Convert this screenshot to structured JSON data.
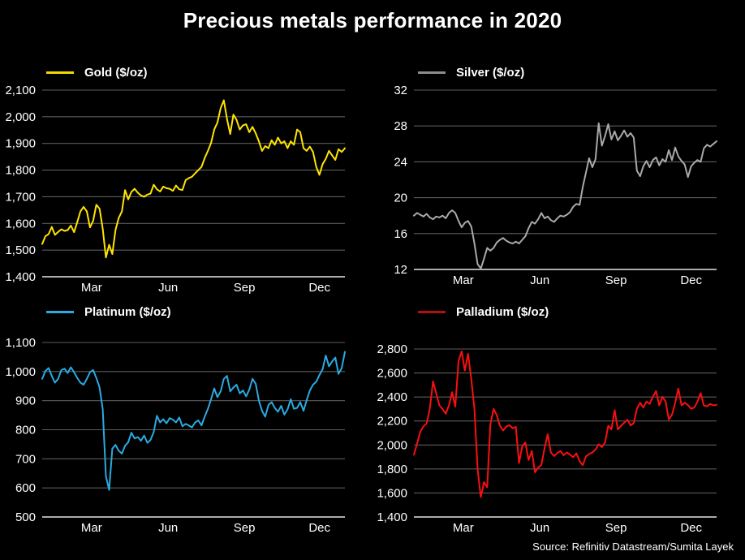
{
  "page": {
    "title": "Precious metals performance in 2020",
    "source": "Source: Refinitiv Datastream/Sumita Layek",
    "background": "#000000"
  },
  "colors": {
    "grid": "#5c5c5c",
    "axis": "#e6e6e6",
    "text": "#ffffff"
  },
  "chart_data": [
    {
      "type": "line",
      "metal": "Gold",
      "legend_label": "Gold ($/oz)",
      "line_color": "#ffe400",
      "swatch_color": "#f0d800",
      "ylim": [
        1400,
        2100
      ],
      "ytick_values": [
        2100,
        2000,
        1900,
        1800,
        1700,
        1600,
        1500,
        1400
      ],
      "ytick_labels": [
        "2,100",
        "2,000",
        "1,900",
        "1,800",
        "1,700",
        "1,600",
        "1,500",
        "1,400"
      ],
      "x_axis": {
        "labels": [
          "Mar",
          "Jun",
          "Sep",
          "Dec"
        ],
        "fractions": [
          0.163,
          0.416,
          0.668,
          0.916
        ]
      },
      "values": [
        1523,
        1552,
        1560,
        1587,
        1557,
        1568,
        1578,
        1572,
        1575,
        1592,
        1567,
        1605,
        1645,
        1662,
        1645,
        1585,
        1610,
        1670,
        1655,
        1580,
        1472,
        1520,
        1485,
        1575,
        1620,
        1645,
        1725,
        1690,
        1718,
        1730,
        1715,
        1705,
        1700,
        1708,
        1712,
        1745,
        1728,
        1720,
        1738,
        1732,
        1730,
        1722,
        1742,
        1728,
        1725,
        1762,
        1770,
        1775,
        1788,
        1800,
        1812,
        1845,
        1872,
        1902,
        1952,
        1978,
        2032,
        2062,
        1992,
        1935,
        2008,
        1988,
        1952,
        1968,
        1972,
        1942,
        1962,
        1938,
        1908,
        1872,
        1890,
        1882,
        1912,
        1895,
        1922,
        1900,
        1908,
        1882,
        1908,
        1895,
        1952,
        1942,
        1882,
        1872,
        1888,
        1868,
        1812,
        1782,
        1822,
        1842,
        1872,
        1855,
        1838,
        1878,
        1868,
        1882
      ]
    },
    {
      "type": "line",
      "metal": "Silver",
      "legend_label": "Silver ($/oz)",
      "line_color": "#a9a9a9",
      "swatch_color": "#8c8c8c",
      "ylim": [
        12,
        32
      ],
      "ytick_values": [
        32,
        28,
        24,
        20,
        16,
        12
      ],
      "ytick_labels": [
        "32",
        "28",
        "24",
        "20",
        "16",
        "12"
      ],
      "x_axis": {
        "labels": [
          "Mar",
          "Jun",
          "Sep",
          "Dec"
        ],
        "fractions": [
          0.163,
          0.416,
          0.668,
          0.916
        ]
      },
      "values": [
        18.0,
        18.3,
        18.1,
        17.9,
        18.2,
        17.8,
        17.6,
        17.9,
        17.8,
        18.0,
        17.7,
        18.3,
        18.6,
        18.3,
        17.4,
        16.7,
        17.2,
        17.4,
        16.8,
        14.9,
        12.6,
        12.1,
        13.2,
        14.4,
        14.1,
        14.4,
        15.0,
        15.3,
        15.5,
        15.2,
        15.0,
        14.9,
        15.1,
        14.9,
        15.3,
        15.7,
        16.6,
        17.3,
        17.1,
        17.6,
        18.3,
        17.7,
        17.9,
        17.5,
        17.3,
        17.7,
        18.0,
        17.9,
        18.1,
        18.4,
        19.0,
        19.3,
        19.2,
        21.2,
        22.8,
        24.4,
        23.4,
        24.3,
        28.3,
        25.8,
        26.9,
        28.2,
        26.5,
        27.4,
        26.4,
        26.9,
        27.5,
        26.8,
        27.2,
        26.7,
        23.0,
        22.4,
        23.5,
        24.1,
        23.4,
        24.2,
        24.5,
        23.6,
        24.3,
        24.0,
        25.3,
        24.2,
        25.6,
        24.6,
        24.1,
        23.7,
        22.3,
        23.5,
        23.9,
        24.2,
        24.0,
        25.5,
        25.9,
        25.7,
        26.0,
        26.3
      ]
    },
    {
      "type": "line",
      "metal": "Platinum",
      "legend_label": "Platinum ($/oz)",
      "line_color": "#29abe2",
      "swatch_color": "#29abe2",
      "ylim": [
        500,
        1100
      ],
      "ytick_values": [
        1100,
        1000,
        900,
        800,
        700,
        600,
        500
      ],
      "ytick_labels": [
        "1,100",
        "1,000",
        "900",
        "800",
        "700",
        "600",
        "500"
      ],
      "x_axis": {
        "labels": [
          "Mar",
          "Jun",
          "Sep",
          "Dec"
        ],
        "fractions": [
          0.163,
          0.416,
          0.668,
          0.916
        ]
      },
      "values": [
        975,
        1002,
        1012,
        985,
        962,
        975,
        1005,
        1010,
        995,
        1015,
        998,
        978,
        962,
        955,
        975,
        998,
        1005,
        978,
        945,
        870,
        640,
        593,
        735,
        748,
        728,
        718,
        745,
        757,
        790,
        770,
        775,
        762,
        780,
        755,
        765,
        792,
        848,
        825,
        836,
        822,
        840,
        835,
        825,
        842,
        812,
        820,
        815,
        808,
        825,
        832,
        815,
        845,
        872,
        905,
        942,
        912,
        932,
        975,
        985,
        932,
        945,
        955,
        925,
        935,
        915,
        938,
        975,
        958,
        900,
        865,
        845,
        885,
        895,
        875,
        862,
        882,
        852,
        870,
        905,
        872,
        875,
        895,
        865,
        902,
        935,
        955,
        965,
        988,
        1008,
        1055,
        1018,
        1035,
        1048,
        992,
        1012,
        1068
      ]
    },
    {
      "type": "line",
      "metal": "Palladium",
      "legend_label": "Palladium ($/oz)",
      "line_color": "#fa0f0f",
      "swatch_color": "#b40f12",
      "ylim": [
        1400,
        2800
      ],
      "ytick_values": [
        2800,
        2600,
        2400,
        2200,
        2000,
        1800,
        1600,
        1400
      ],
      "ytick_labels": [
        "2,800",
        "2,600",
        "2,400",
        "2,200",
        "2,000",
        "1,800",
        "1,600",
        "1,400"
      ],
      "x_axis": {
        "labels": [
          "Mar",
          "Jun",
          "Sep",
          "Dec"
        ],
        "fractions": [
          0.163,
          0.416,
          0.668,
          0.916
        ]
      },
      "values": [
        1918,
        2010,
        2110,
        2155,
        2180,
        2300,
        2530,
        2430,
        2330,
        2300,
        2260,
        2330,
        2440,
        2320,
        2700,
        2780,
        2620,
        2760,
        2550,
        2300,
        1800,
        1565,
        1690,
        1648,
        2170,
        2300,
        2250,
        2160,
        2120,
        2155,
        2165,
        2140,
        2150,
        1850,
        1990,
        2020,
        1875,
        1950,
        1772,
        1812,
        1835,
        1972,
        2090,
        1938,
        1908,
        1932,
        1950,
        1915,
        1938,
        1920,
        1898,
        1930,
        1865,
        1832,
        1905,
        1925,
        1938,
        1962,
        2005,
        1982,
        2022,
        2160,
        2130,
        2290,
        2130,
        2160,
        2185,
        2210,
        2162,
        2182,
        2302,
        2352,
        2312,
        2362,
        2342,
        2402,
        2450,
        2330,
        2402,
        2362,
        2212,
        2252,
        2352,
        2470,
        2330,
        2352,
        2332,
        2302,
        2312,
        2362,
        2432,
        2330,
        2322,
        2342,
        2330,
        2335
      ]
    }
  ]
}
